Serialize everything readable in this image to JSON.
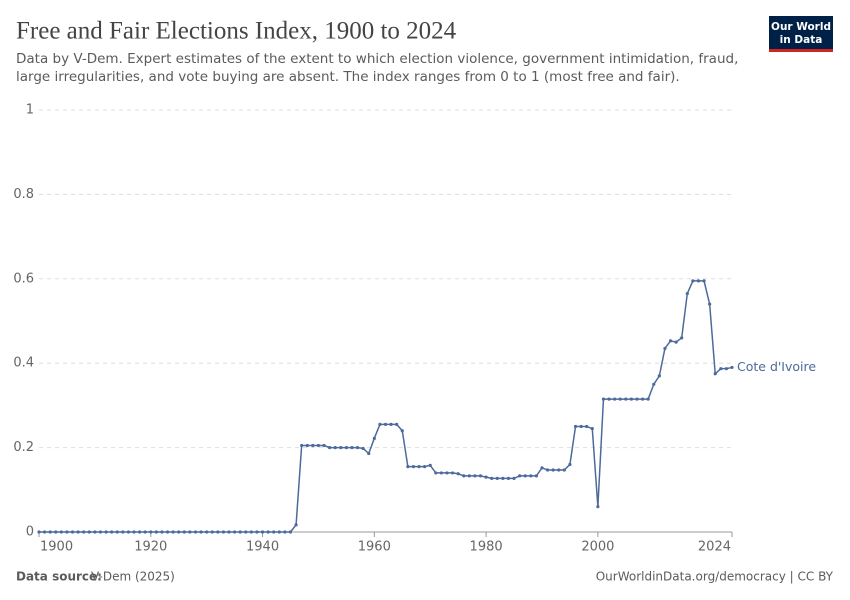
{
  "chart_data": {
    "type": "line",
    "title": "Free and Fair Elections Index, 1900 to 2024",
    "subtitle": "Data by V-Dem. Expert estimates of the extent to which election violence, government intimidation, fraud, large irregularities, and vote buying are absent. The index ranges from 0 to 1 (most free and fair).",
    "logo": [
      "Our World",
      "in Data"
    ],
    "source_label": "Data source:",
    "source": "V-Dem (2025)",
    "credit": "OurWorldinData.org/democracy | CC BY",
    "x": [
      1900,
      1901,
      1902,
      1903,
      1904,
      1905,
      1906,
      1907,
      1908,
      1909,
      1910,
      1911,
      1912,
      1913,
      1914,
      1915,
      1916,
      1917,
      1918,
      1919,
      1920,
      1921,
      1922,
      1923,
      1924,
      1925,
      1926,
      1927,
      1928,
      1929,
      1930,
      1931,
      1932,
      1933,
      1934,
      1935,
      1936,
      1937,
      1938,
      1939,
      1940,
      1941,
      1942,
      1943,
      1944,
      1945,
      1946,
      1947,
      1948,
      1949,
      1950,
      1951,
      1952,
      1953,
      1954,
      1955,
      1956,
      1957,
      1958,
      1959,
      1960,
      1961,
      1962,
      1963,
      1964,
      1965,
      1966,
      1967,
      1968,
      1969,
      1970,
      1971,
      1972,
      1973,
      1974,
      1975,
      1976,
      1977,
      1978,
      1979,
      1980,
      1981,
      1982,
      1983,
      1984,
      1985,
      1986,
      1987,
      1988,
      1989,
      1990,
      1991,
      1992,
      1993,
      1994,
      1995,
      1996,
      1997,
      1998,
      1999,
      2000,
      2001,
      2002,
      2003,
      2004,
      2005,
      2006,
      2007,
      2008,
      2009,
      2010,
      2011,
      2012,
      2013,
      2014,
      2015,
      2016,
      2017,
      2018,
      2019,
      2020,
      2021,
      2022,
      2023,
      2024
    ],
    "series": [
      {
        "name": "Cote d'Ivoire",
        "color": "#4c6a9c",
        "values": [
          0,
          0,
          0,
          0,
          0,
          0,
          0,
          0,
          0,
          0,
          0,
          0,
          0,
          0,
          0,
          0,
          0,
          0,
          0,
          0,
          0,
          0,
          0,
          0,
          0,
          0,
          0,
          0,
          0,
          0,
          0,
          0,
          0,
          0,
          0,
          0,
          0,
          0,
          0,
          0,
          0,
          0,
          0,
          0,
          0,
          0,
          0.017,
          0.205,
          0.205,
          0.205,
          0.205,
          0.205,
          0.2,
          0.2,
          0.2,
          0.2,
          0.2,
          0.2,
          0.198,
          0.186,
          0.222,
          0.255,
          0.255,
          0.255,
          0.255,
          0.24,
          0.155,
          0.155,
          0.155,
          0.155,
          0.158,
          0.14,
          0.14,
          0.14,
          0.14,
          0.138,
          0.133,
          0.133,
          0.133,
          0.133,
          0.13,
          0.127,
          0.127,
          0.127,
          0.127,
          0.127,
          0.133,
          0.133,
          0.133,
          0.133,
          0.152,
          0.147,
          0.147,
          0.147,
          0.147,
          0.16,
          0.25,
          0.25,
          0.25,
          0.245,
          0.06,
          0.315,
          0.315,
          0.315,
          0.315,
          0.315,
          0.315,
          0.315,
          0.315,
          0.315,
          0.35,
          0.37,
          0.435,
          0.453,
          0.45,
          0.46,
          0.565,
          0.595,
          0.595,
          0.595,
          0.54,
          0.375,
          0.387,
          0.387,
          0.39
        ]
      }
    ],
    "xlim": [
      1900,
      2024
    ],
    "xticks": [
      1900,
      1920,
      1940,
      1960,
      1980,
      2000,
      2024
    ],
    "ylim": [
      0,
      1
    ],
    "yticks": [
      0,
      0.2,
      0.4,
      0.6,
      0.8,
      1
    ],
    "grid": true
  }
}
